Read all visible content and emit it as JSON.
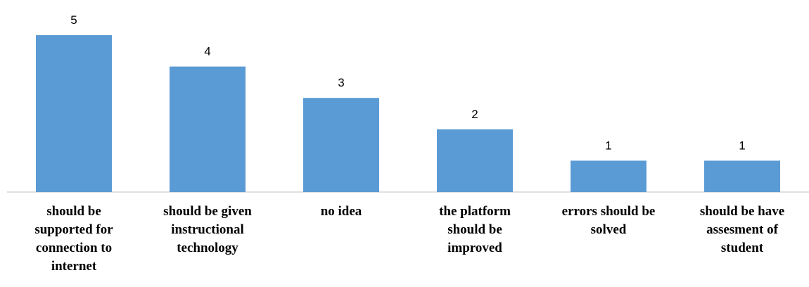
{
  "chart_data": {
    "type": "bar",
    "categories": [
      [
        "should be",
        "supported for",
        "connection to",
        "internet"
      ],
      [
        "should be given",
        "instructional",
        "technology"
      ],
      [
        "no idea"
      ],
      [
        "the platform",
        "should be",
        "improved"
      ],
      [
        "errors should be",
        "solved"
      ],
      [
        "should be have",
        "assesment of",
        "student"
      ]
    ],
    "values": [
      5,
      4,
      3,
      2,
      1,
      1
    ],
    "ylim": [
      0,
      5
    ],
    "bar_color": "#5b9bd5",
    "axis_color": "#bfbfbf",
    "grid": false,
    "legend": "none"
  }
}
